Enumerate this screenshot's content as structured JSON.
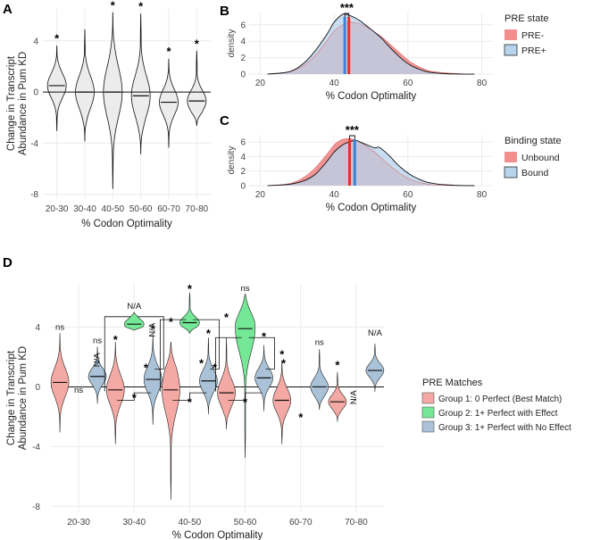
{
  "panel_letters": {
    "a": "A",
    "b": "B",
    "c": "C",
    "d": "D"
  },
  "colors": {
    "violin_gray": "#ececec",
    "pre_minus": "#f28e8e",
    "pre_plus": "#b8d4ec",
    "red_line": "#e8302a",
    "blue_line": "#3d82d6",
    "group1": "#f4a9a4",
    "group2": "#74e896",
    "group3": "#a9c2d8"
  },
  "chart_data": [
    {
      "id": "A",
      "type": "violin",
      "xlabel": "% Codon Optimality",
      "ylabel_line1": "Change in Transcript",
      "ylabel_line2": "Abundance in Pum KD",
      "categories": [
        "20-30",
        "30-40",
        "40-50",
        "50-60",
        "60-70",
        "70-80"
      ],
      "yticks": [
        "4",
        "0",
        "-4",
        "-8"
      ],
      "ylim": [
        -8.3,
        6.5
      ],
      "hline": 0,
      "significance": [
        "*",
        "",
        "*",
        "*",
        "*",
        "*"
      ],
      "violins": [
        {
          "min": -3.0,
          "max": 3.6,
          "median": 0.5
        },
        {
          "min": -3.8,
          "max": 4.9,
          "median": 0.0
        },
        {
          "min": -7.5,
          "max": 6.2,
          "median": 0.0
        },
        {
          "min": -4.8,
          "max": 6.1,
          "median": -0.3
        },
        {
          "min": -4.3,
          "max": 2.6,
          "median": -0.8
        },
        {
          "min": -2.6,
          "max": 3.2,
          "median": -0.7
        }
      ]
    },
    {
      "id": "B",
      "type": "area",
      "xlabel": "% Codon Optimality",
      "ylabel": "density",
      "xlim": [
        17,
        83
      ],
      "ylim": [
        0,
        7.5
      ],
      "xticks": [
        "20",
        "40",
        "60",
        "80"
      ],
      "yticks": [
        "0",
        "2",
        "4",
        "6"
      ],
      "legend_title": "PRE state",
      "significance": "***",
      "series": [
        {
          "name": "PRE-",
          "mean": 44.0,
          "x": [
            22,
            28,
            32,
            35,
            38,
            40,
            42,
            44,
            45,
            47,
            49,
            51,
            53,
            55,
            57,
            59,
            61,
            63,
            65,
            67,
            70,
            74,
            78
          ],
          "y": [
            0.0,
            0.3,
            1.1,
            2.3,
            4.0,
            5.2,
            5.9,
            6.3,
            6.3,
            6.1,
            5.7,
            5.1,
            4.5,
            3.7,
            2.9,
            2.1,
            1.4,
            0.9,
            0.5,
            0.3,
            0.15,
            0.05,
            0.0
          ]
        },
        {
          "name": "PRE+",
          "mean": 42.9,
          "x": [
            22,
            28,
            32,
            35,
            38,
            40,
            42,
            43,
            45,
            47,
            49,
            51,
            53,
            55,
            57,
            59,
            61,
            63,
            65,
            67,
            70,
            74,
            78
          ],
          "y": [
            0.0,
            0.3,
            1.4,
            2.9,
            4.8,
            6.3,
            7.2,
            7.3,
            7.0,
            6.5,
            5.8,
            5.1,
            4.3,
            3.3,
            2.4,
            1.6,
            1.0,
            0.6,
            0.3,
            0.15,
            0.05,
            0.0,
            0.0
          ]
        }
      ]
    },
    {
      "id": "C",
      "type": "area",
      "xlabel": "% Codon Optimality",
      "ylabel": "density",
      "xlim": [
        17,
        83
      ],
      "ylim": [
        0,
        7.0
      ],
      "xticks": [
        "20",
        "40",
        "60",
        "80"
      ],
      "yticks": [
        "0",
        "2",
        "4",
        "6"
      ],
      "legend_title": "Binding state",
      "significance": "***",
      "series": [
        {
          "name": "Unbound",
          "mean": 44.2,
          "x": [
            22,
            28,
            32,
            35,
            38,
            40,
            42,
            44,
            45,
            47,
            49,
            51,
            53,
            55,
            57,
            59,
            61,
            63,
            65,
            67,
            70,
            74,
            78
          ],
          "y": [
            0.0,
            0.3,
            1.2,
            2.5,
            4.3,
            5.6,
            6.3,
            6.5,
            6.4,
            6.0,
            5.3,
            4.6,
            3.7,
            2.8,
            2.0,
            1.3,
            0.8,
            0.45,
            0.25,
            0.12,
            0.05,
            0.0,
            0.0
          ]
        },
        {
          "name": "Bound",
          "mean": 45.6,
          "x": [
            22,
            28,
            32,
            35,
            38,
            40,
            42,
            44,
            46,
            47,
            49,
            51,
            52,
            53,
            55,
            57,
            59,
            61,
            63,
            65,
            67,
            70,
            74,
            78
          ],
          "y": [
            0.0,
            0.2,
            0.7,
            1.6,
            3.3,
            4.6,
            5.5,
            6.0,
            6.2,
            6.0,
            5.6,
            5.2,
            5.3,
            5.0,
            4.1,
            3.0,
            2.1,
            1.4,
            0.9,
            0.5,
            0.3,
            0.12,
            0.03,
            0.0
          ]
        }
      ]
    },
    {
      "id": "D",
      "type": "violin",
      "xlabel": "% Codon Optimality",
      "ylabel_line1": "Change in Transcript",
      "ylabel_line2": "Abundance in Pum KD",
      "categories": [
        "20-30",
        "30-40",
        "40-50",
        "50-60",
        "60-70",
        "70-80"
      ],
      "yticks": [
        "4",
        "0",
        "-4",
        "-8"
      ],
      "ylim": [
        -8.4,
        6.9
      ],
      "hline": 0,
      "legend_title": "PRE Matches",
      "series_names": [
        "Group 1: 0 Perfect (Best Match)",
        "Group 2: 1+ Perfect with Effect",
        "Group 3: 1+ Perfect with No Effect"
      ],
      "violins": [
        {
          "cat": 0,
          "group": 0,
          "min": -3.0,
          "max": 3.6,
          "median": 0.3
        },
        {
          "cat": 0,
          "group": 2,
          "min": -1.1,
          "max": 2.7,
          "median": 0.7
        },
        {
          "cat": 1,
          "group": 0,
          "min": -3.8,
          "max": 3.0,
          "median": -0.2
        },
        {
          "cat": 1,
          "group": 1,
          "min": 3.8,
          "max": 5.0,
          "median": 4.2
        },
        {
          "cat": 1,
          "group": 2,
          "min": -2.5,
          "max": 3.5,
          "median": 0.5
        },
        {
          "cat": 2,
          "group": 0,
          "min": -7.5,
          "max": 3.0,
          "median": -0.2
        },
        {
          "cat": 2,
          "group": 1,
          "min": 3.6,
          "max": 6.3,
          "median": 4.3
        },
        {
          "cat": 2,
          "group": 2,
          "min": -1.8,
          "max": 3.3,
          "median": 0.4
        },
        {
          "cat": 3,
          "group": 0,
          "min": -2.8,
          "max": 3.3,
          "median": -0.4
        },
        {
          "cat": 3,
          "group": 1,
          "min": -4.7,
          "max": 6.2,
          "median": 3.9
        },
        {
          "cat": 3,
          "group": 2,
          "min": -1.6,
          "max": 2.8,
          "median": 0.6
        },
        {
          "cat": 4,
          "group": 0,
          "min": -3.8,
          "max": 1.7,
          "median": -0.9
        },
        {
          "cat": 4,
          "group": 2,
          "min": -1.5,
          "max": 2.5,
          "median": 0.0
        },
        {
          "cat": 5,
          "group": 0,
          "min": -2.3,
          "max": 1.0,
          "median": -1.0
        },
        {
          "cat": 5,
          "group": 2,
          "min": -0.3,
          "max": 2.9,
          "median": 1.1
        }
      ],
      "annotations": [
        {
          "text": "ns",
          "cat": 0,
          "group": 0,
          "y": 4.0
        },
        {
          "text": "ns",
          "cat": 0,
          "group": 2,
          "y": 3.1
        },
        {
          "text": "ns",
          "cat": 0,
          "group": 1,
          "y": -0.2
        },
        {
          "text": "N/A",
          "cat": 1,
          "group": 1,
          "y": 5.4
        },
        {
          "text": "N/A",
          "cat": 1,
          "group": 0,
          "y": 1.8,
          "rotate": true,
          "dx": -18
        },
        {
          "text": "*",
          "cat": 1,
          "group": 0,
          "y": 3.2
        },
        {
          "text": "*",
          "cat": 1,
          "group": 2,
          "y": 3.9
        },
        {
          "text": "*",
          "cat": 1,
          "group": 1,
          "y": -0.7
        },
        {
          "text": "N/A",
          "cat": 2,
          "group": 0,
          "y": 3.8,
          "rotate": true,
          "dx": -18
        },
        {
          "text": "*",
          "cat": 2,
          "group": 0,
          "y": 4.4
        },
        {
          "text": "*",
          "cat": 2,
          "group": 1,
          "y": 6.6
        },
        {
          "text": "*",
          "cat": 2,
          "group": 2,
          "y": 3.6
        },
        {
          "text": "*",
          "cat": 2,
          "group": 0,
          "y": 1.3,
          "dx": -28
        },
        {
          "text": "*",
          "cat": 2,
          "group": 1,
          "y": 1.3,
          "dx": 28
        },
        {
          "text": "*",
          "cat": 2,
          "group": 1,
          "y": -1.0
        },
        {
          "text": "ns",
          "cat": 3,
          "group": 1,
          "y": 6.6
        },
        {
          "text": "*",
          "cat": 3,
          "group": 0,
          "y": 4.7
        },
        {
          "text": "*",
          "cat": 3,
          "group": 2,
          "y": 3.4
        },
        {
          "text": "*",
          "cat": 3,
          "group": 0,
          "y": 1.6,
          "dx": -28
        },
        {
          "text": "*",
          "cat": 3,
          "group": 2,
          "y": 1.6,
          "dx": 22
        },
        {
          "text": "*",
          "cat": 3,
          "group": 1,
          "y": -1.0
        },
        {
          "text": "*",
          "cat": 4,
          "group": 0,
          "y": 2.2
        },
        {
          "text": "ns",
          "cat": 4,
          "group": 2,
          "y": 3.0
        },
        {
          "text": "*",
          "cat": 4,
          "group": 1,
          "y": -2.0
        },
        {
          "text": "*",
          "cat": 5,
          "group": 0,
          "y": 1.5
        },
        {
          "text": "N/A",
          "cat": 5,
          "group": 2,
          "y": 3.6
        },
        {
          "text": "N/A",
          "cat": 5,
          "group": 1,
          "y": -0.7,
          "rotate": true
        }
      ]
    }
  ]
}
